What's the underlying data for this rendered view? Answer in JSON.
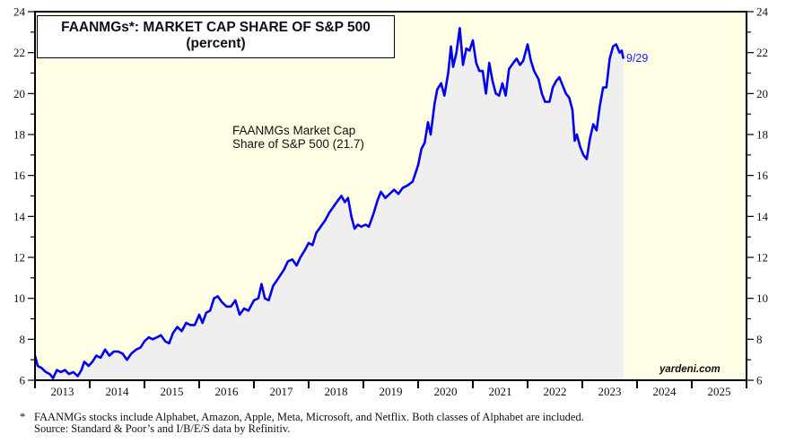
{
  "chart_data": {
    "type": "area",
    "title": "FAANMGs*: MARKET CAP SHARE OF S&P 500",
    "subtitle": "(percent)",
    "xlabel": "",
    "ylabel": "",
    "ylim": [
      6,
      24
    ],
    "xlim": [
      2013,
      2026
    ],
    "yticks": [
      6,
      8,
      10,
      12,
      14,
      16,
      18,
      20,
      22,
      24
    ],
    "y_minor_step": 1,
    "xtick_labels": [
      "2013",
      "2014",
      "2015",
      "2016",
      "2017",
      "2018",
      "2019",
      "2020",
      "2021",
      "2022",
      "2023",
      "2024",
      "2025"
    ],
    "grid": false,
    "series": [
      {
        "name": "FAANMGs Market Cap Share of S&P 500",
        "color": "#0000ee",
        "fill_color": "#efefef",
        "points": [
          [
            2013.0,
            7.2
          ],
          [
            2013.05,
            6.7
          ],
          [
            2013.12,
            6.6
          ],
          [
            2013.2,
            6.4
          ],
          [
            2013.27,
            6.3
          ],
          [
            2013.33,
            6.1
          ],
          [
            2013.4,
            6.5
          ],
          [
            2013.47,
            6.4
          ],
          [
            2013.55,
            6.5
          ],
          [
            2013.62,
            6.3
          ],
          [
            2013.7,
            6.4
          ],
          [
            2013.78,
            6.2
          ],
          [
            2013.85,
            6.5
          ],
          [
            2013.9,
            6.9
          ],
          [
            2013.98,
            6.7
          ],
          [
            2014.05,
            6.9
          ],
          [
            2014.12,
            7.2
          ],
          [
            2014.2,
            7.1
          ],
          [
            2014.28,
            7.5
          ],
          [
            2014.36,
            7.2
          ],
          [
            2014.44,
            7.4
          ],
          [
            2014.52,
            7.4
          ],
          [
            2014.6,
            7.3
          ],
          [
            2014.68,
            7.0
          ],
          [
            2014.76,
            7.3
          ],
          [
            2014.85,
            7.5
          ],
          [
            2014.93,
            7.6
          ],
          [
            2015.0,
            7.9
          ],
          [
            2015.08,
            8.1
          ],
          [
            2015.15,
            8.0
          ],
          [
            2015.23,
            8.1
          ],
          [
            2015.3,
            8.2
          ],
          [
            2015.38,
            7.9
          ],
          [
            2015.45,
            7.8
          ],
          [
            2015.52,
            8.3
          ],
          [
            2015.6,
            8.6
          ],
          [
            2015.68,
            8.4
          ],
          [
            2015.76,
            8.8
          ],
          [
            2015.84,
            8.7
          ],
          [
            2015.92,
            8.7
          ],
          [
            2016.0,
            9.2
          ],
          [
            2016.06,
            8.8
          ],
          [
            2016.13,
            9.3
          ],
          [
            2016.2,
            9.4
          ],
          [
            2016.27,
            10.0
          ],
          [
            2016.34,
            10.1
          ],
          [
            2016.42,
            9.8
          ],
          [
            2016.5,
            9.6
          ],
          [
            2016.58,
            9.6
          ],
          [
            2016.66,
            9.9
          ],
          [
            2016.74,
            9.2
          ],
          [
            2016.82,
            9.5
          ],
          [
            2016.9,
            9.4
          ],
          [
            2017.0,
            9.9
          ],
          [
            2017.08,
            10.0
          ],
          [
            2017.14,
            10.7
          ],
          [
            2017.2,
            10.0
          ],
          [
            2017.27,
            9.9
          ],
          [
            2017.35,
            10.6
          ],
          [
            2017.45,
            11.0
          ],
          [
            2017.55,
            11.4
          ],
          [
            2017.62,
            11.8
          ],
          [
            2017.7,
            11.9
          ],
          [
            2017.78,
            11.6
          ],
          [
            2017.85,
            12.0
          ],
          [
            2017.92,
            12.3
          ],
          [
            2018.0,
            12.7
          ],
          [
            2018.07,
            12.6
          ],
          [
            2018.14,
            13.2
          ],
          [
            2018.22,
            13.5
          ],
          [
            2018.3,
            13.8
          ],
          [
            2018.38,
            14.2
          ],
          [
            2018.46,
            14.5
          ],
          [
            2018.54,
            14.8
          ],
          [
            2018.6,
            15.0
          ],
          [
            2018.66,
            14.7
          ],
          [
            2018.72,
            14.9
          ],
          [
            2018.78,
            14.0
          ],
          [
            2018.84,
            13.4
          ],
          [
            2018.9,
            13.6
          ],
          [
            2018.96,
            13.5
          ],
          [
            2019.04,
            13.6
          ],
          [
            2019.1,
            13.5
          ],
          [
            2019.18,
            14.1
          ],
          [
            2019.26,
            14.8
          ],
          [
            2019.32,
            15.2
          ],
          [
            2019.4,
            14.9
          ],
          [
            2019.48,
            15.1
          ],
          [
            2019.56,
            15.3
          ],
          [
            2019.64,
            15.1
          ],
          [
            2019.72,
            15.4
          ],
          [
            2019.8,
            15.5
          ],
          [
            2019.9,
            15.7
          ],
          [
            2020.0,
            16.5
          ],
          [
            2020.06,
            17.3
          ],
          [
            2020.12,
            17.6
          ],
          [
            2020.18,
            18.6
          ],
          [
            2020.23,
            18.0
          ],
          [
            2020.3,
            19.5
          ],
          [
            2020.35,
            20.2
          ],
          [
            2020.42,
            20.5
          ],
          [
            2020.48,
            19.9
          ],
          [
            2020.55,
            21.0
          ],
          [
            2020.6,
            22.3
          ],
          [
            2020.64,
            21.3
          ],
          [
            2020.7,
            22.0
          ],
          [
            2020.76,
            23.2
          ],
          [
            2020.82,
            21.4
          ],
          [
            2020.88,
            22.2
          ],
          [
            2020.94,
            22.1
          ],
          [
            2021.0,
            22.6
          ],
          [
            2021.06,
            21.5
          ],
          [
            2021.12,
            21.1
          ],
          [
            2021.18,
            21.1
          ],
          [
            2021.24,
            20.0
          ],
          [
            2021.3,
            21.5
          ],
          [
            2021.36,
            20.6
          ],
          [
            2021.42,
            20.0
          ],
          [
            2021.48,
            19.9
          ],
          [
            2021.54,
            20.5
          ],
          [
            2021.6,
            19.9
          ],
          [
            2021.66,
            21.2
          ],
          [
            2021.74,
            21.5
          ],
          [
            2021.8,
            21.7
          ],
          [
            2021.86,
            21.4
          ],
          [
            2021.92,
            21.6
          ],
          [
            2022.0,
            22.4
          ],
          [
            2022.06,
            21.6
          ],
          [
            2022.12,
            21.1
          ],
          [
            2022.2,
            20.7
          ],
          [
            2022.26,
            20.0
          ],
          [
            2022.32,
            19.6
          ],
          [
            2022.4,
            19.6
          ],
          [
            2022.46,
            20.3
          ],
          [
            2022.52,
            20.6
          ],
          [
            2022.58,
            20.8
          ],
          [
            2022.64,
            20.4
          ],
          [
            2022.7,
            20.0
          ],
          [
            2022.76,
            19.8
          ],
          [
            2022.82,
            19.2
          ],
          [
            2022.86,
            17.7
          ],
          [
            2022.9,
            18.0
          ],
          [
            2022.96,
            17.4
          ],
          [
            2023.02,
            17.0
          ],
          [
            2023.08,
            16.8
          ],
          [
            2023.14,
            17.8
          ],
          [
            2023.2,
            18.5
          ],
          [
            2023.26,
            18.2
          ],
          [
            2023.32,
            19.4
          ],
          [
            2023.38,
            20.3
          ],
          [
            2023.44,
            20.3
          ],
          [
            2023.5,
            21.7
          ],
          [
            2023.56,
            22.3
          ],
          [
            2023.62,
            22.4
          ],
          [
            2023.68,
            22.0
          ],
          [
            2023.72,
            22.1
          ],
          [
            2023.75,
            21.7
          ]
        ]
      }
    ],
    "annotations": [
      {
        "text": "FAANMGs Market Cap",
        "text2": "Share of S&P 500 (21.7)"
      },
      {
        "text": "9/29",
        "color": "#1a1aff"
      }
    ],
    "background_color": "#fffde3",
    "data_background_color": "#efefef"
  },
  "title_box": {
    "line1": "FAANMGs*: MARKET CAP SHARE OF S&P 500",
    "line2": "(percent)"
  },
  "annotation": {
    "line1": "FAANMGs Market Cap",
    "line2": "Share of S&P 500 (21.7)"
  },
  "end_label": "9/29",
  "brand": "yardeni.com",
  "footnote": {
    "star": "*",
    "line1": "FAANMGs stocks include Alphabet, Amazon, Apple, Meta, Microsoft, and Netflix. Both classes of Alphabet are included.",
    "line2": "Source: Standard & Poor’s and I/B/E/S data by Refinitiv."
  }
}
